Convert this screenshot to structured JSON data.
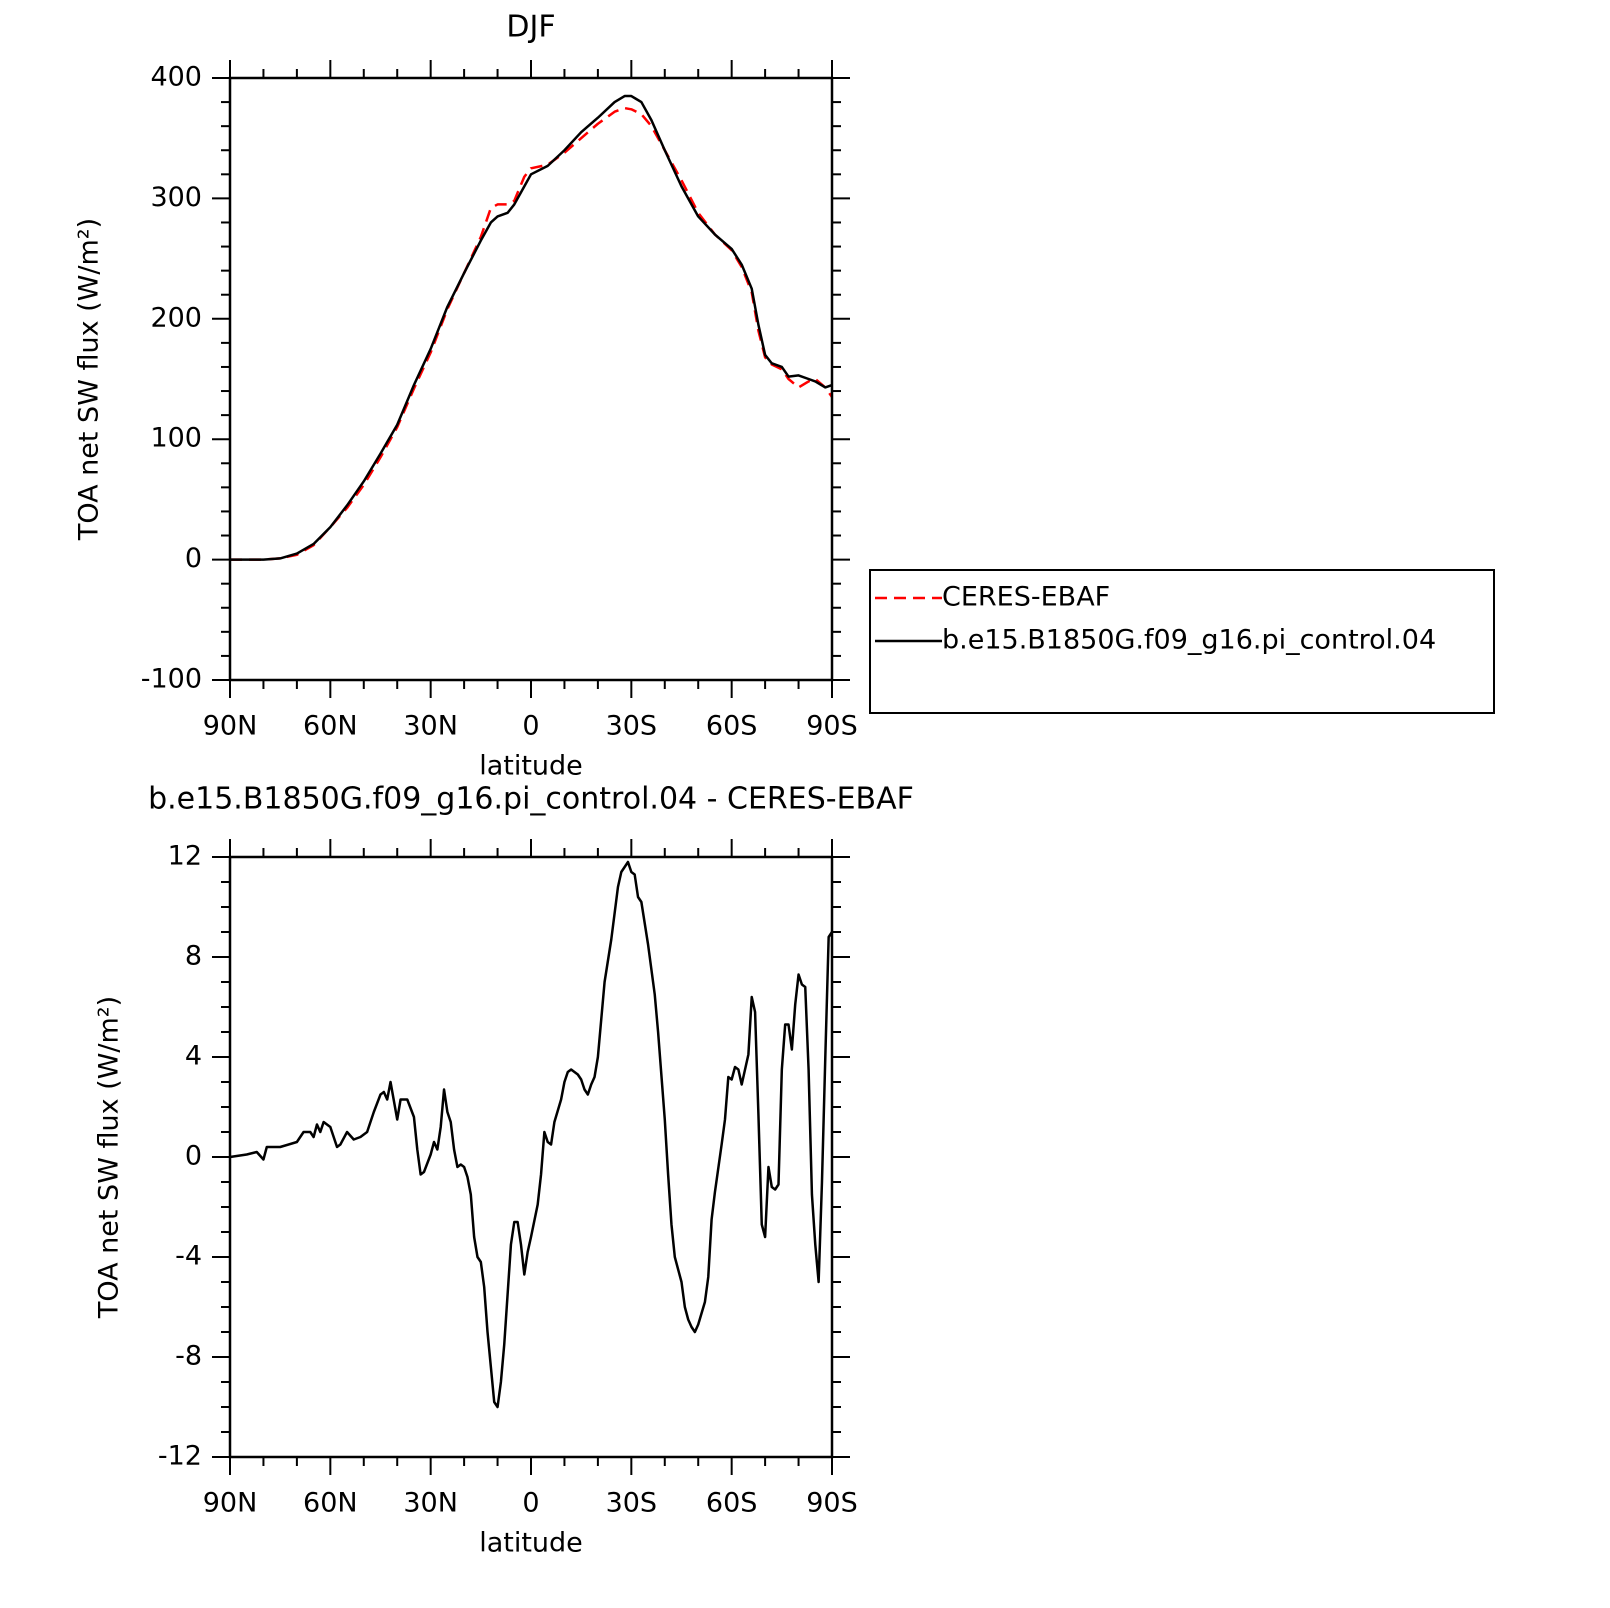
{
  "chart_data": [
    {
      "type": "line",
      "title": "DJF",
      "xlabel": "latitude",
      "ylabel": "TOA net SW flux (W/m²)",
      "x": [
        90,
        85,
        80,
        75,
        70,
        65,
        60,
        55,
        50,
        45,
        40,
        35,
        30,
        25,
        20,
        15,
        12,
        10,
        7,
        5,
        2,
        0,
        -5,
        -10,
        -15,
        -20,
        -25,
        -28,
        -30,
        -33,
        -36,
        -40,
        -45,
        -50,
        -55,
        -60,
        -63,
        -66,
        -68,
        -70,
        -72,
        -75,
        -77,
        -80,
        -83,
        -85,
        -88,
        -90
      ],
      "series": [
        {
          "name": "CERES-EBAF",
          "color": "#ff0000",
          "line_style": "dashed",
          "values": [
            0,
            0,
            0,
            1,
            4,
            12,
            27,
            43,
            62,
            85,
            110,
            142,
            172,
            208,
            238,
            268,
            292,
            295,
            295,
            298,
            318,
            325,
            328,
            338,
            350,
            362,
            372,
            375,
            374,
            370,
            360,
            340,
            315,
            288,
            270,
            257,
            243,
            222,
            190,
            168,
            162,
            158,
            150,
            143,
            148,
            150,
            143,
            135
          ]
        },
        {
          "name": "b.e15.B1850G.f09_g16.pi_control.04",
          "color": "#000000",
          "line_style": "solid",
          "values": [
            0,
            0,
            0,
            1,
            5,
            13,
            27,
            45,
            65,
            88,
            112,
            145,
            175,
            210,
            238,
            265,
            280,
            285,
            288,
            295,
            310,
            320,
            327,
            340,
            355,
            367,
            380,
            385,
            385,
            380,
            365,
            340,
            310,
            285,
            270,
            258,
            245,
            225,
            195,
            170,
            163,
            160,
            152,
            153,
            150,
            148,
            143,
            145
          ]
        }
      ],
      "xlim": [
        90,
        -90
      ],
      "xticks": [
        {
          "value": 90,
          "label": "90N"
        },
        {
          "value": 60,
          "label": "60N"
        },
        {
          "value": 30,
          "label": "30N"
        },
        0,
        {
          "value": -30,
          "label": "30S"
        },
        {
          "value": -60,
          "label": "60S"
        },
        {
          "value": -90,
          "label": "90S"
        }
      ],
      "ylim": [
        -100,
        400
      ],
      "yticks": [
        -100,
        0,
        100,
        200,
        300,
        400
      ],
      "legend": "right"
    },
    {
      "type": "line",
      "title": "b.e15.B1850G.f09_g16.pi_control.04 - CERES-EBAF",
      "xlabel": "latitude",
      "ylabel": "TOA net SW flux (W/m²)",
      "x": [
        90,
        85,
        82,
        80,
        79,
        75,
        70,
        68,
        66,
        65,
        64,
        63,
        62,
        60,
        58,
        57,
        55,
        53,
        51,
        49,
        47,
        45,
        44,
        43,
        42,
        40,
        39,
        37,
        35,
        34,
        33,
        32,
        30,
        29,
        28,
        27,
        26,
        25,
        24,
        23,
        22,
        21,
        20,
        19,
        18,
        17,
        16,
        15,
        14,
        13,
        12,
        11,
        10,
        9,
        8,
        7,
        6,
        5,
        4,
        3,
        2,
        1,
        0,
        -2,
        -3,
        -4,
        -5,
        -6,
        -7,
        -9,
        -10,
        -11,
        -12,
        -14,
        -15,
        -16,
        -17,
        -18,
        -19,
        -20,
        -22,
        -24,
        -26,
        -27,
        -28,
        -29,
        -30,
        -31,
        -32,
        -33,
        -35,
        -37,
        -38,
        -40,
        -41,
        -42,
        -43,
        -45,
        -46,
        -47,
        -48,
        -49,
        -50,
        -52,
        -53,
        -54,
        -55,
        -57,
        -58,
        -59,
        -60,
        -61,
        -62,
        -63,
        -64,
        -65,
        -66,
        -67,
        -68,
        -69,
        -70,
        -71,
        -72,
        -73,
        -74,
        -75,
        -76,
        -77,
        -78,
        -79,
        -80,
        -81,
        -82,
        -83,
        -84,
        -85,
        -86,
        -87,
        -88,
        -89,
        -90
      ],
      "values": [
        0,
        0.1,
        0.2,
        -0.1,
        0.4,
        0.4,
        0.6,
        1,
        1,
        0.8,
        1.3,
        1,
        1.4,
        1.2,
        0.4,
        0.5,
        1,
        0.7,
        0.8,
        1,
        1.8,
        2.5,
        2.6,
        2.3,
        3,
        1.5,
        2.3,
        2.3,
        1.6,
        0.3,
        -0.7,
        -0.6,
        0.1,
        0.6,
        0.3,
        1.2,
        2.7,
        1.8,
        1.4,
        0.3,
        -0.4,
        -0.3,
        -0.4,
        -0.8,
        -1.5,
        -3.2,
        -4,
        -4.2,
        -5.2,
        -7,
        -8.4,
        -9.8,
        -10,
        -9,
        -7.5,
        -5.5,
        -3.5,
        -2.6,
        -2.6,
        -3.5,
        -4.7,
        -3.8,
        -3.2,
        -1.9,
        -0.7,
        1,
        0.6,
        0.5,
        1.4,
        2.3,
        3,
        3.4,
        3.5,
        3.3,
        3.1,
        2.7,
        2.5,
        2.9,
        3.2,
        4,
        7,
        8.7,
        10.8,
        11.4,
        11.6,
        11.8,
        11.4,
        11.3,
        10.4,
        10.2,
        8.5,
        6.5,
        5,
        1.5,
        -0.7,
        -2.7,
        -4,
        -5,
        -6,
        -6.5,
        -6.8,
        -7,
        -6.7,
        -5.8,
        -4.8,
        -2.5,
        -1.4,
        0.5,
        1.5,
        3.2,
        3.1,
        3.6,
        3.5,
        2.9,
        3.5,
        4.1,
        6.4,
        5.8,
        1.7,
        -2.7,
        -3.2,
        -0.4,
        -1.2,
        -1.3,
        -1.1,
        3.5,
        5.3,
        5.3,
        4.3,
        6.1,
        7.3,
        6.9,
        6.8,
        3.5,
        -1.5,
        -3.5,
        -5,
        -1,
        4,
        8.8,
        9
      ],
      "color": "#000000",
      "xlim": [
        90,
        -90
      ],
      "xticks": [
        {
          "value": 90,
          "label": "90N"
        },
        {
          "value": 60,
          "label": "60N"
        },
        {
          "value": 30,
          "label": "30N"
        },
        0,
        {
          "value": -30,
          "label": "30S"
        },
        {
          "value": -60,
          "label": "60S"
        },
        {
          "value": -90,
          "label": "90S"
        }
      ],
      "ylim": [
        -12,
        12
      ],
      "yticks": [
        -12,
        -8,
        -4,
        0,
        4,
        8,
        12
      ]
    }
  ]
}
